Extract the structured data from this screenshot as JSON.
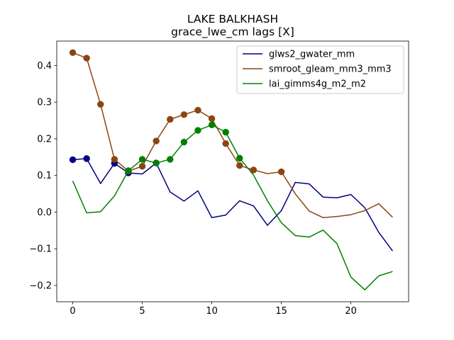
{
  "chart_data": {
    "type": "line",
    "title": "LAKE BALKHASH",
    "subtitle": "grace_lwe_cm lags [X]",
    "xlabel": "",
    "ylabel": "",
    "xlim": [
      -1.15,
      24.15
    ],
    "ylim": [
      -0.2445,
      0.4665
    ],
    "x_ticks": [
      0,
      5,
      10,
      15,
      20
    ],
    "y_ticks": [
      -0.2,
      -0.1,
      0.0,
      0.1,
      0.2,
      0.3,
      0.4
    ],
    "x_tick_labels": [
      "0",
      "5",
      "10",
      "15",
      "20"
    ],
    "y_tick_labels": [
      "−0.2",
      "−0.1",
      "0.0",
      "0.1",
      "0.2",
      "0.3",
      "0.4"
    ],
    "grid": false,
    "legend_position": "top-right",
    "x": [
      0,
      1,
      2,
      3,
      4,
      5,
      6,
      7,
      8,
      9,
      10,
      11,
      12,
      13,
      14,
      15,
      16,
      17,
      18,
      19,
      20,
      21,
      22,
      23
    ],
    "series": [
      {
        "name": "glws2_gwater_mm",
        "color": "#000080",
        "values": [
          0.143,
          0.146,
          0.078,
          0.133,
          0.107,
          0.104,
          0.134,
          0.055,
          0.03,
          0.058,
          -0.015,
          -0.008,
          0.031,
          0.017,
          -0.036,
          0.004,
          0.081,
          0.077,
          0.041,
          0.039,
          0.048,
          0.012,
          -0.055,
          -0.106
        ],
        "markers": [
          0,
          1,
          3,
          4,
          6
        ]
      },
      {
        "name": "smroot_gleam_mm3_mm3",
        "color": "#8B4513",
        "values": [
          0.435,
          0.42,
          0.294,
          0.144,
          0.112,
          0.125,
          0.194,
          0.253,
          0.266,
          0.278,
          0.255,
          0.187,
          0.127,
          0.115,
          0.105,
          0.11,
          0.05,
          0.003,
          -0.015,
          -0.012,
          -0.007,
          0.004,
          0.023,
          -0.014
        ],
        "markers": [
          0,
          1,
          2,
          3,
          4,
          5,
          6,
          7,
          8,
          9,
          10,
          11,
          12,
          13,
          15
        ]
      },
      {
        "name": "lai_gimms4g_m2_m2",
        "color": "#008000",
        "values": [
          0.085,
          -0.002,
          0.001,
          0.044,
          0.113,
          0.144,
          0.134,
          0.144,
          0.191,
          0.223,
          0.238,
          0.218,
          0.147,
          0.101,
          0.031,
          -0.029,
          -0.064,
          -0.068,
          -0.049,
          -0.086,
          -0.177,
          -0.212,
          -0.174,
          -0.162
        ],
        "markers": [
          4,
          5,
          6,
          7,
          8,
          9,
          10,
          11,
          12
        ]
      }
    ]
  }
}
